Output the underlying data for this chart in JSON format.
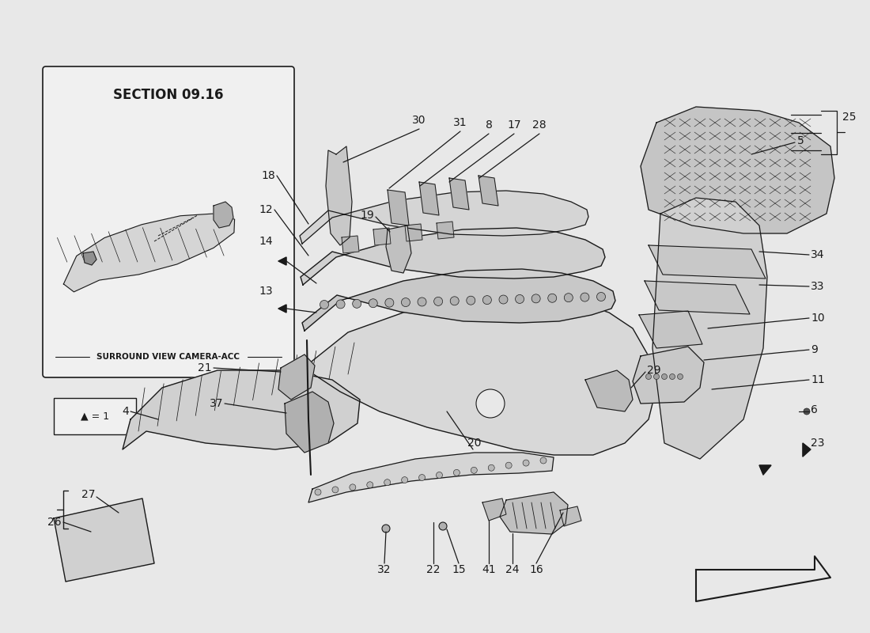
{
  "bg_color": "#e8e8e8",
  "box_bg": "#f0f0f0",
  "line_color": "#1a1a1a",
  "font_color": "#1a1a1a",
  "section_label": "SECTION 09.16",
  "section_sublabel": "SURROUND VIEW CAMERA-ACC",
  "triangle_label": "▲ = 1",
  "fig_width": 11.0,
  "fig_height": 8.0
}
